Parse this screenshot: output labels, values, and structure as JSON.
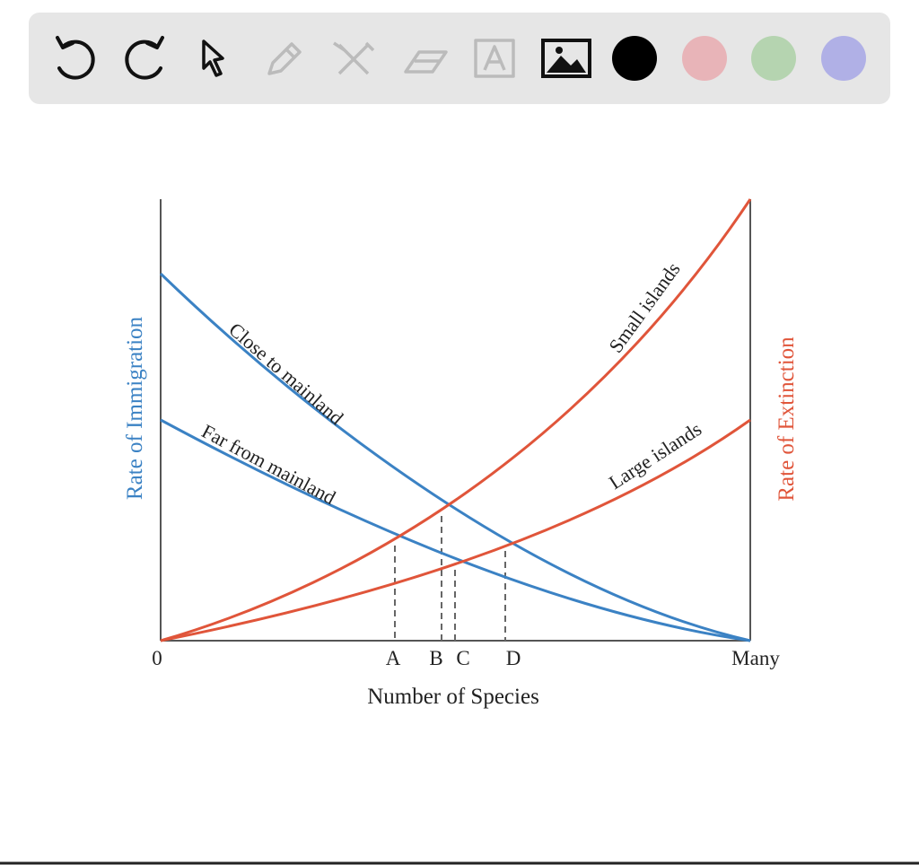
{
  "diagram": {
    "y_label_left": "Rate of Immigration",
    "y_label_right": "Rate of Extinction",
    "x_label": "Number of Species",
    "x_ticks": [
      "0",
      "A",
      "B",
      "C",
      "D",
      "Many"
    ],
    "curves": [
      "Close to mainland",
      "Far from mainland",
      "Small islands",
      "Large islands"
    ]
  }
}
